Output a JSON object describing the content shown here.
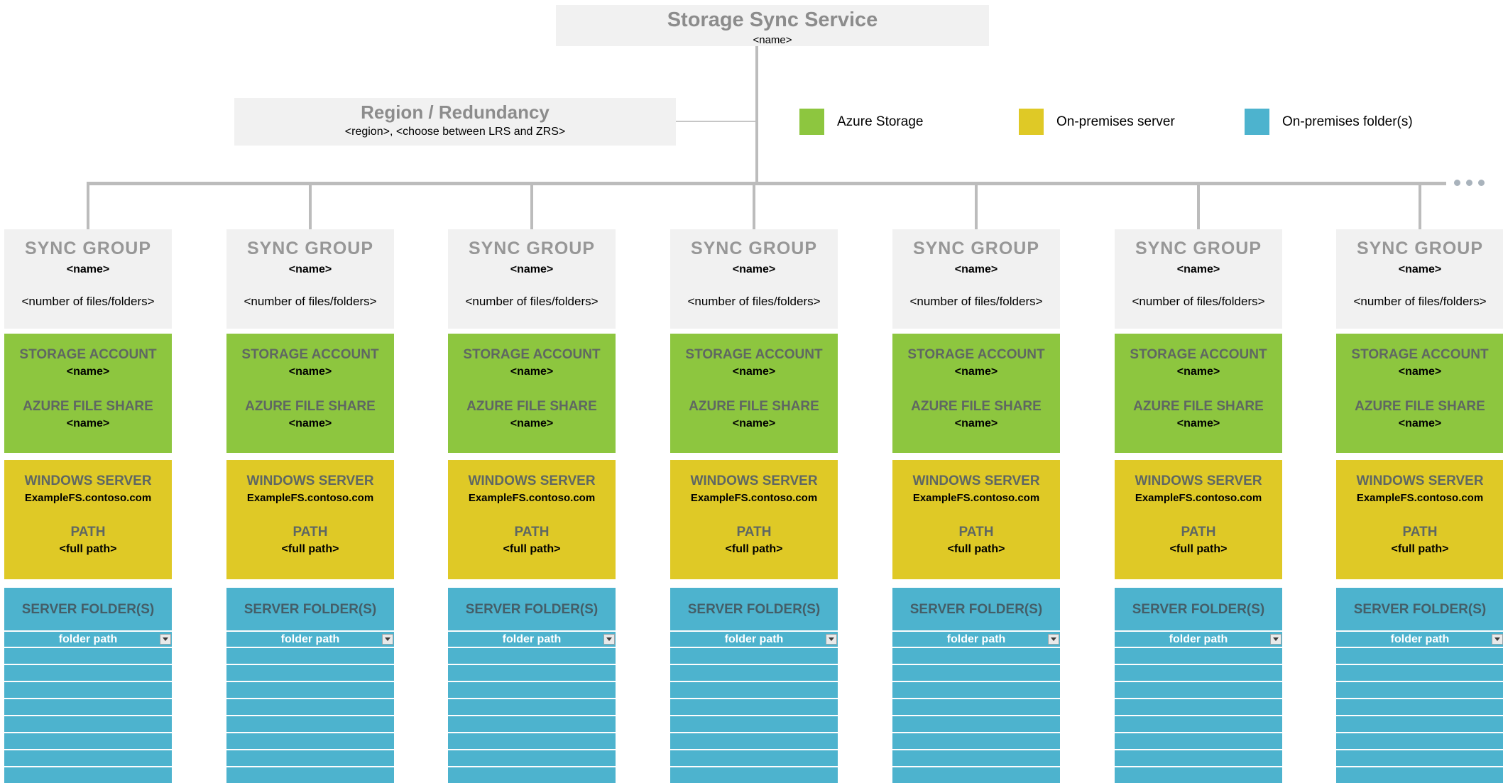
{
  "diagram": {
    "columns_count": 7,
    "overflow_indicator": "more-sync-groups-ellipsis"
  },
  "title_box": {
    "title": "Storage Sync Service",
    "name": "<name>"
  },
  "region_box": {
    "title": "Region / Redundancy",
    "subtitle": "<region>, <choose between LRS and ZRS>"
  },
  "legend": {
    "items": [
      {
        "label": "Azure Storage",
        "color": "#8DC63F"
      },
      {
        "label": "On-premises server",
        "color": "#DFC926"
      },
      {
        "label": "On-premises folder(s)",
        "color": "#4DB3CE"
      }
    ]
  },
  "sync_group": {
    "header_title": "SYNC GROUP",
    "header_name": "<name>",
    "header_count": "<number of files/folders>",
    "storage_account_label": "STORAGE ACCOUNT",
    "storage_account_name": "<name>",
    "file_share_label": "AZURE FILE SHARE",
    "file_share_name": "<name>",
    "windows_server_label": "WINDOWS SERVER",
    "windows_server_name": "ExampleFS.contoso.com",
    "path_label": "PATH",
    "path_value": "<full path>",
    "server_folders_label": "SERVER FOLDER(S)",
    "folder_path_label": "folder path",
    "empty_row_count": 8
  },
  "colors": {
    "azure_storage_green": "#8DC63F",
    "on_premises_server_yellow": "#DFC926",
    "on_premises_folder_teal": "#4DB3CE",
    "gray_box": "#f1f1f1",
    "connector_gray": "#bcbcbc",
    "heading_gray": "#8c8c8c"
  }
}
